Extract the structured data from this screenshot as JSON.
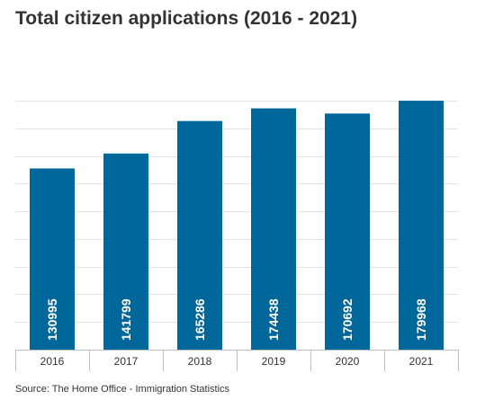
{
  "title": "Total citizen applications (2016 - 2021)",
  "source": "Source: The Home Office - Immigration Statistics",
  "colors": {
    "bar": "#00679a",
    "grid": "#e3e3e3",
    "axis": "#bfbfbf",
    "label": "#ffffff",
    "text": "#333333"
  },
  "chart_data": {
    "type": "bar",
    "title": "Total citizen applications (2016 - 2021)",
    "categories": [
      "2016",
      "2017",
      "2018",
      "2019",
      "2020",
      "2021"
    ],
    "values": [
      130995,
      141799,
      165286,
      174438,
      170692,
      179968
    ],
    "data_labels": [
      "130995",
      "141799",
      "165286",
      "174438",
      "170692",
      "179968"
    ],
    "xlabel": "",
    "ylabel": "",
    "ylim": [
      0,
      180000
    ],
    "y_gridline_step": 20000,
    "y_tick_labels_shown": false,
    "grid": true,
    "legend": "none",
    "data_label_orientation": "vertical"
  }
}
